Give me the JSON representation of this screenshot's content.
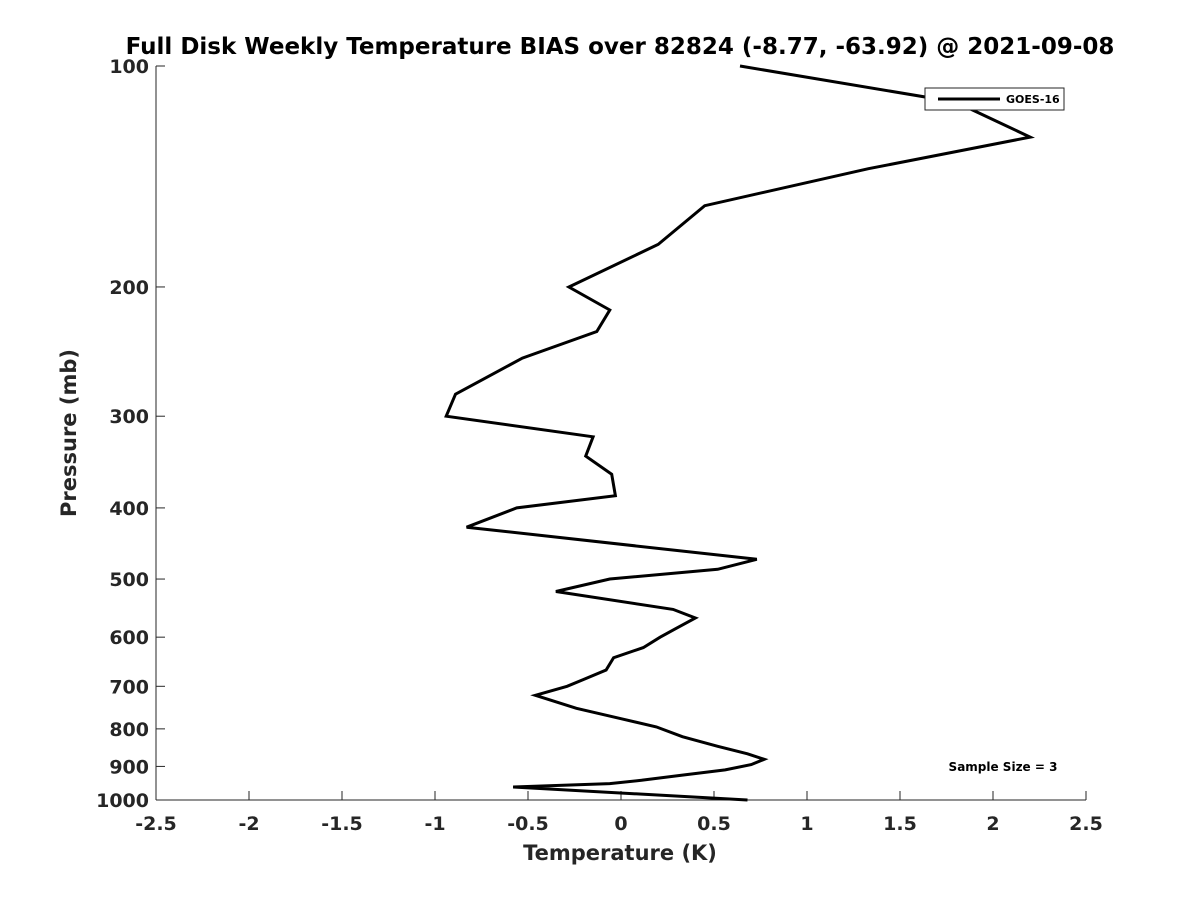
{
  "chart_data": {
    "type": "line",
    "title": "Full Disk Weekly Temperature BIAS over 82824 (-8.77, -63.92) @ 2021-09-08",
    "xlabel": "Temperature (K)",
    "ylabel": "Pressure (mb)",
    "xlim": [
      -2.5,
      2.5
    ],
    "ylim": [
      100,
      1000
    ],
    "y_scale": "log",
    "y_reversed": true,
    "grid": false,
    "xticks": [
      -2.5,
      -2,
      -1.5,
      -1,
      -0.5,
      0,
      0.5,
      1,
      1.5,
      2,
      2.5
    ],
    "xtick_labels": [
      "-2.5",
      "-2",
      "-1.5",
      "-1",
      "-0.5",
      "0",
      "0.5",
      "1",
      "1.5",
      "2",
      "2.5"
    ],
    "yticks": [
      100,
      200,
      300,
      400,
      500,
      600,
      700,
      800,
      900,
      1000
    ],
    "ytick_labels": [
      "100",
      "200",
      "300",
      "400",
      "500",
      "600",
      "700",
      "800",
      "900",
      "1000"
    ],
    "legend_position": "top-right",
    "annotation": "Sample Size = 3",
    "colors": {
      "line": "#000000"
    },
    "series": [
      {
        "name": "GOES-16",
        "x": [
          0.64,
          1.8,
          2.2,
          1.33,
          0.45,
          0.2,
          -0.28,
          -0.06,
          -0.13,
          -0.53,
          -0.89,
          -0.94,
          -0.15,
          -0.19,
          -0.05,
          -0.03,
          -0.56,
          -0.83,
          0.73,
          0.52,
          -0.06,
          -0.35,
          0.28,
          0.4,
          0.29,
          0.21,
          0.12,
          -0.04,
          -0.08,
          -0.2,
          -0.29,
          -0.46,
          -0.24,
          0.0,
          0.19,
          0.33,
          0.52,
          0.68,
          0.77,
          0.7,
          0.56,
          0.33,
          0.11,
          -0.06,
          -0.58,
          0.68
        ],
        "y": [
          100,
          112,
          125,
          138,
          155,
          175,
          200,
          215,
          230,
          250,
          280,
          300,
          320,
          340,
          360,
          385,
          400,
          425,
          470,
          485,
          500,
          520,
          550,
          565,
          585,
          600,
          620,
          640,
          665,
          685,
          700,
          720,
          750,
          775,
          795,
          820,
          845,
          865,
          880,
          895,
          910,
          925,
          940,
          950,
          960,
          1000
        ]
      }
    ]
  }
}
